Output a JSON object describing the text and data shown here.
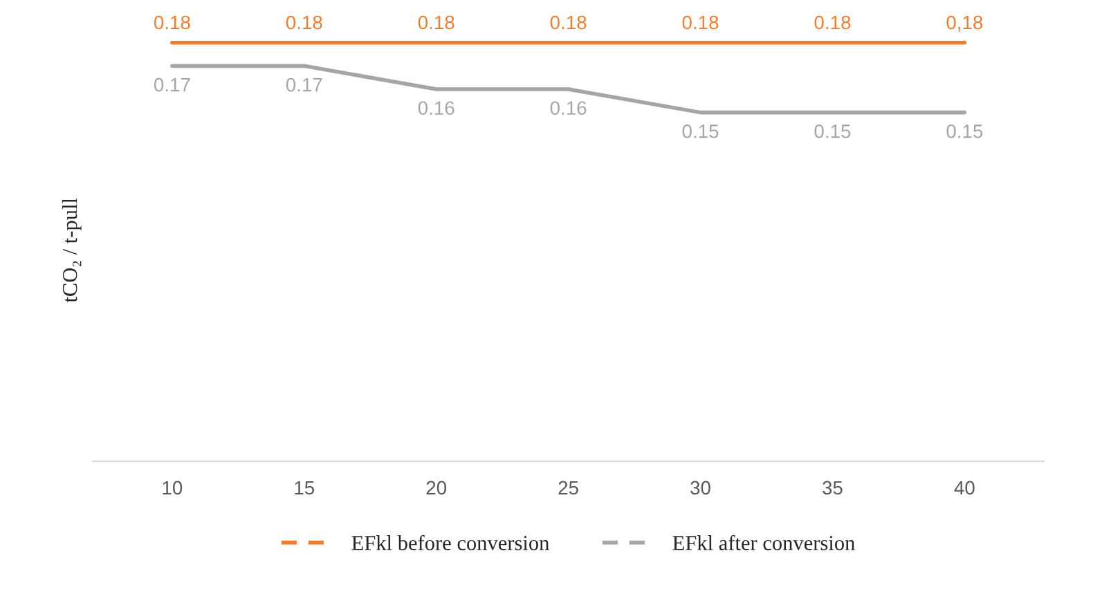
{
  "chart_data": {
    "type": "line",
    "ylabel": "tCO₂ / t-pull",
    "categories": [
      "10",
      "15",
      "20",
      "25",
      "30",
      "35",
      "40"
    ],
    "tick_labels": "x",
    "grid": false,
    "legend": "bottom",
    "line_style": "solid",
    "series": [
      {
        "name": "EFkl before conversion",
        "color": "#ed7d31",
        "values": [
          0.18,
          0.18,
          0.18,
          0.18,
          0.18,
          0.18,
          0.18
        ],
        "value_labels": [
          "0.18",
          "0.18",
          "0.18",
          "0.18",
          "0.18",
          "0.18",
          "0,18"
        ]
      },
      {
        "name": "EFkl after conversion",
        "color": "#a5a5a5",
        "values": [
          0.17,
          0.17,
          0.16,
          0.16,
          0.15,
          0.15,
          0.15
        ],
        "value_labels": [
          "0.17",
          "0.17",
          "0.16",
          "0.16",
          "0.15",
          "0.15",
          "0.15"
        ]
      }
    ]
  }
}
